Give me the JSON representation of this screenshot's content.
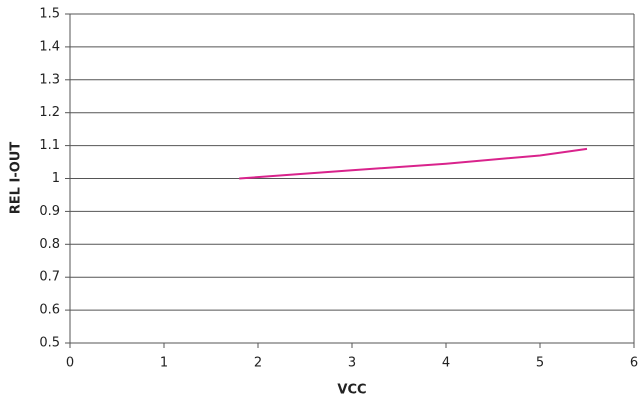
{
  "chart_data": {
    "type": "line",
    "x_label": "VCC",
    "y_label": "REL I-OUT",
    "series": [
      {
        "name": "REL I-OUT",
        "color": "#d9238c",
        "x": [
          1.8,
          3,
          4,
          5,
          5.5
        ],
        "values": [
          1.0,
          1.025,
          1.045,
          1.07,
          1.09
        ]
      }
    ],
    "xlim": [
      0,
      6
    ],
    "xticks": [
      0,
      1,
      2,
      3,
      4,
      5,
      6
    ],
    "ylim": [
      0.5,
      1.5
    ],
    "yticks": [
      0.5,
      0.6,
      0.7,
      0.8,
      0.9,
      1,
      1.1,
      1.2,
      1.3,
      1.4,
      1.5
    ],
    "grid": true
  }
}
